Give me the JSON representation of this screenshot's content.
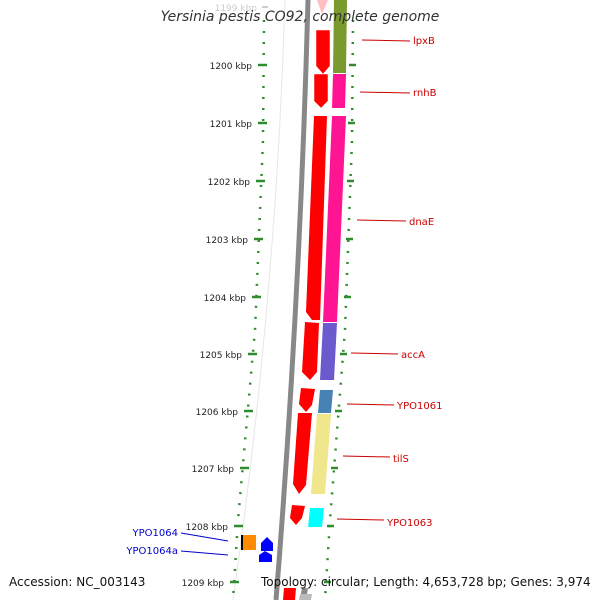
{
  "title": "Yersinia pestis CO92, complete genome",
  "accession_label": "Accession: NC_003143",
  "summary_label": "Topology: circular; Length: 4,653,728 bp; Genes: 3,974",
  "ruler": {
    "top_partial_label": "1199 kbp",
    "ticks": [
      "1200 kbp",
      "1201 kbp",
      "1202 kbp",
      "1203 kbp",
      "1204 kbp",
      "1205 kbp",
      "1206 kbp",
      "1207 kbp",
      "1208 kbp",
      "1209 kbp"
    ]
  },
  "colors": {
    "forward_gene": "#ff0000",
    "reverse_gene": "#0000ff",
    "forward_label": "#cc0000",
    "reverse_label": "#0000cc",
    "ruler": "#2e8b2e",
    "backbone": "#888888"
  },
  "genes": [
    {
      "name": "lpxB",
      "strand": "forward",
      "cog_color": "#7a9a2e"
    },
    {
      "name": "rnhB",
      "strand": "forward",
      "cog_color": "#ff1493"
    },
    {
      "name": "dnaE",
      "strand": "forward",
      "cog_color": "#ff1493"
    },
    {
      "name": "accA",
      "strand": "forward",
      "cog_color": "#6a5acd"
    },
    {
      "name": "YPO1061",
      "strand": "forward",
      "cog_color": "#4682b4"
    },
    {
      "name": "tilS",
      "strand": "forward",
      "cog_color": "#f0e68c"
    },
    {
      "name": "YPO1063",
      "strand": "forward",
      "cog_color": "#00ffff"
    },
    {
      "name": "YPO1064",
      "strand": "reverse",
      "cog_color": "#ff8c00"
    },
    {
      "name": "YPO1064a",
      "strand": "reverse",
      "cog_color": "#0000ff"
    }
  ]
}
